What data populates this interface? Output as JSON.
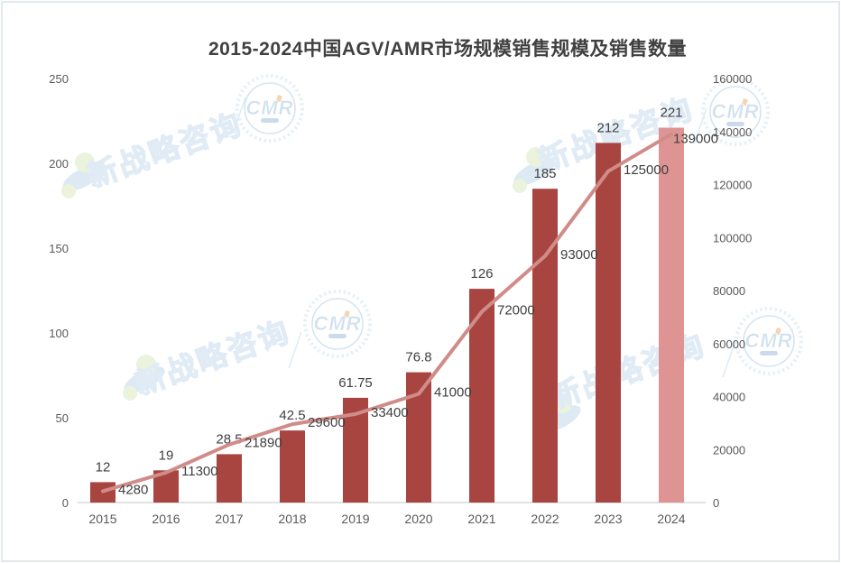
{
  "title": "2015-2024中国AGV/AMR市场规模销售规模及销售数量",
  "watermark": {
    "brand_text": "新战略咨询",
    "badge_text": "CMR",
    "colors": {
      "text_outline": "#c2d9ec",
      "blob_blue": "#bcd6ea",
      "dot_green": "#d9e9bd",
      "badge_ring": "#aecbe5",
      "badge_letters": "#a0c2e0",
      "badge_accent": "#eaaa66",
      "badge_pill": "#86abd6"
    }
  },
  "chart_data": {
    "type": "combo",
    "title": "2015-2024中国AGV/AMR市场规模销售规模及销售数量",
    "categories": [
      "2015",
      "2016",
      "2017",
      "2018",
      "2019",
      "2020",
      "2021",
      "2022",
      "2023",
      "2024"
    ],
    "series": [
      {
        "name": "销售规模",
        "type": "bar",
        "axis": "left",
        "values": [
          12,
          19,
          28.5,
          42.5,
          61.75,
          76.8,
          126,
          185,
          212,
          221
        ],
        "labels": [
          "12",
          "19",
          "28.5",
          "42.5",
          "61.75",
          "76.8",
          "126",
          "185",
          "212",
          "221"
        ],
        "color": "#a94541",
        "last_bar_color": "#de9492"
      },
      {
        "name": "销售数量",
        "type": "line",
        "axis": "right",
        "values": [
          4280,
          11300,
          21890,
          29600,
          33400,
          41000,
          72000,
          93000,
          125000,
          139000
        ],
        "labels": [
          "4280",
          "11300",
          "21890",
          "29600",
          "33400",
          "41000",
          "72000",
          "93000",
          "125000",
          "139000"
        ],
        "color": "#d08c89"
      }
    ],
    "left_axis": {
      "min": 0,
      "max": 250,
      "step": 50,
      "ticks": [
        "0",
        "50",
        "100",
        "150",
        "200",
        "250"
      ]
    },
    "right_axis": {
      "min": 0,
      "max": 160000,
      "step": 20000,
      "ticks": [
        "0",
        "20000",
        "40000",
        "60000",
        "80000",
        "100000",
        "120000",
        "140000",
        "160000"
      ]
    },
    "grid": false,
    "legend": "none",
    "axis_text_color": "#595959",
    "label_color": "#3f3f3f",
    "baseline_color": "#d9d9d9"
  }
}
